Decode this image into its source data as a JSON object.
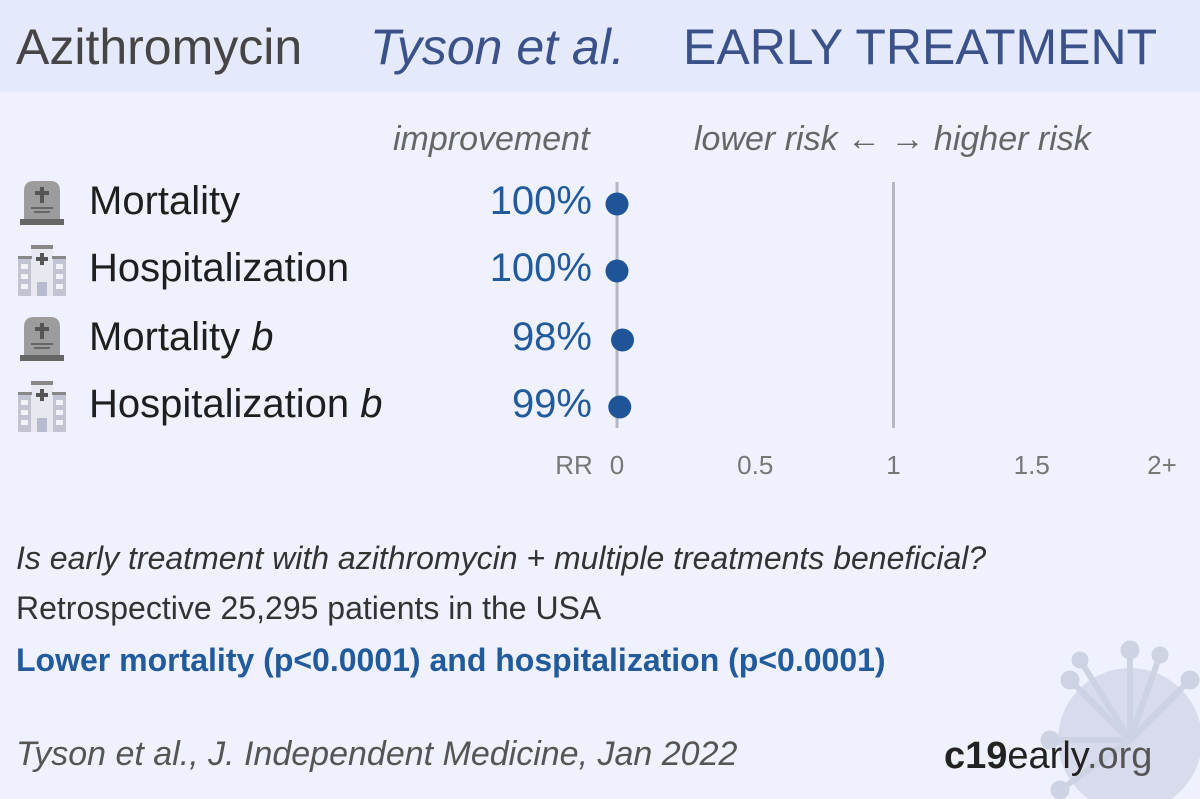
{
  "title": {
    "drug": "Azithromycin",
    "study": "Tyson et al.",
    "stage": "EARLY TREATMENT"
  },
  "header_improvement": "improvement",
  "header_risk": "lower risk ← → higher risk",
  "chart_data": {
    "type": "scatter",
    "xlabel": "RR",
    "xlim": [
      0,
      2
    ],
    "ticks": [
      "0",
      "0.5",
      "1",
      "1.5",
      "2+"
    ],
    "tick_values": [
      0,
      0.5,
      1,
      1.5,
      2
    ],
    "rows": [
      {
        "label": "Mortality",
        "icon": "gravestone-icon",
        "improvement": "100%",
        "rr": 0.0
      },
      {
        "label": "Hospitalization",
        "icon": "hospital-icon",
        "improvement": "100%",
        "rr": 0.0
      },
      {
        "label": "Mortality b",
        "icon": "gravestone-icon",
        "improvement": "98%",
        "rr": 0.02
      },
      {
        "label": "Hospitalization b",
        "icon": "hospital-icon",
        "improvement": "99%",
        "rr": 0.01
      }
    ]
  },
  "question": "Is early treatment with azithromycin + multiple treatments beneficial?",
  "design": "Retrospective 25,295 patients in the USA",
  "conclusion": "Lower mortality (p<0.0001) and hospitalization (p<0.0001)",
  "citation": "Tyson et al., J. Independent Medicine, Jan 2022",
  "logo": {
    "a": "c19",
    "b": "early",
    "c": ".org"
  },
  "colors": {
    "accent": "#225b9c",
    "title": "#3a5189",
    "dot": "#1f5596"
  }
}
